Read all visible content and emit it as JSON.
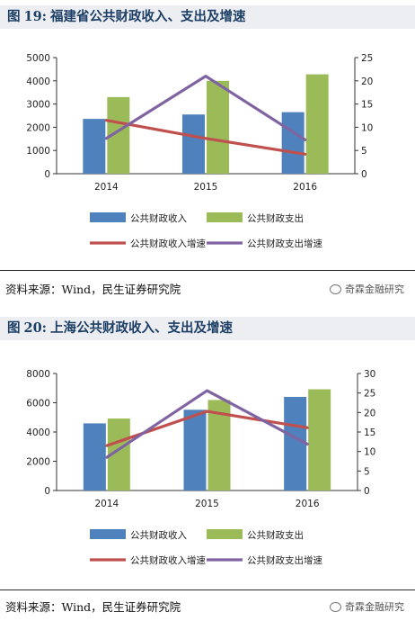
{
  "figures": [
    {
      "title": {
        "prefix": "图",
        "number": "19:",
        "text": "福建省公共财政收入、支出及增速"
      },
      "source": "资料来源：Wind，民生证券研究院",
      "watermark": "奇霖金融研究"
    },
    {
      "title": {
        "prefix": "图",
        "number": "20:",
        "text": "上海公共财政收入、支出及增速"
      },
      "source": "资料来源：Wind，民生证券研究院",
      "watermark": "奇霖金融研究"
    }
  ],
  "colors": {
    "revenue": "#4f81bd",
    "expenditure": "#9bbb59",
    "revenue_growth": "#c0504d",
    "expenditure_growth": "#8064a2"
  },
  "chart_data": [
    {
      "type": "bar",
      "categories": [
        "2014",
        "2015",
        "2016"
      ],
      "series": [
        {
          "name": "公共财政收入",
          "type": "bar",
          "axis": "left",
          "values": [
            2360,
            2550,
            2650
          ]
        },
        {
          "name": "公共财政支出",
          "type": "bar",
          "axis": "left",
          "values": [
            3300,
            4000,
            4280
          ]
        },
        {
          "name": "公共财政收入增速",
          "type": "line",
          "axis": "right",
          "values": [
            11.5,
            7.6,
            4.2
          ]
        },
        {
          "name": "公共财政支出增速",
          "type": "line",
          "axis": "right",
          "values": [
            7.6,
            21.0,
            7.3
          ]
        }
      ],
      "ylim": [
        0,
        5000
      ],
      "yticks": [
        0,
        1000,
        2000,
        3000,
        4000,
        5000
      ],
      "y2lim": [
        0,
        25
      ],
      "y2ticks": [
        0,
        5,
        10,
        15,
        20,
        25
      ],
      "grid": false,
      "legend": "bottom"
    },
    {
      "type": "bar",
      "categories": [
        "2014",
        "2015",
        "2016"
      ],
      "series": [
        {
          "name": "公共财政收入",
          "type": "bar",
          "axis": "left",
          "values": [
            4590,
            5520,
            6400
          ]
        },
        {
          "name": "公共财政支出",
          "type": "bar",
          "axis": "left",
          "values": [
            4920,
            6190,
            6920
          ]
        },
        {
          "name": "公共财政收入增速",
          "type": "line",
          "axis": "right",
          "values": [
            11.5,
            20.3,
            16.1
          ]
        },
        {
          "name": "公共财政支出增速",
          "type": "line",
          "axis": "right",
          "values": [
            8.5,
            25.6,
            11.9
          ]
        }
      ],
      "ylim": [
        0,
        8000
      ],
      "yticks": [
        0,
        2000,
        4000,
        6000,
        8000
      ],
      "y2lim": [
        0,
        30
      ],
      "y2ticks": [
        0,
        5,
        10,
        15,
        20,
        25,
        30
      ],
      "grid": false,
      "legend": "bottom"
    }
  ]
}
